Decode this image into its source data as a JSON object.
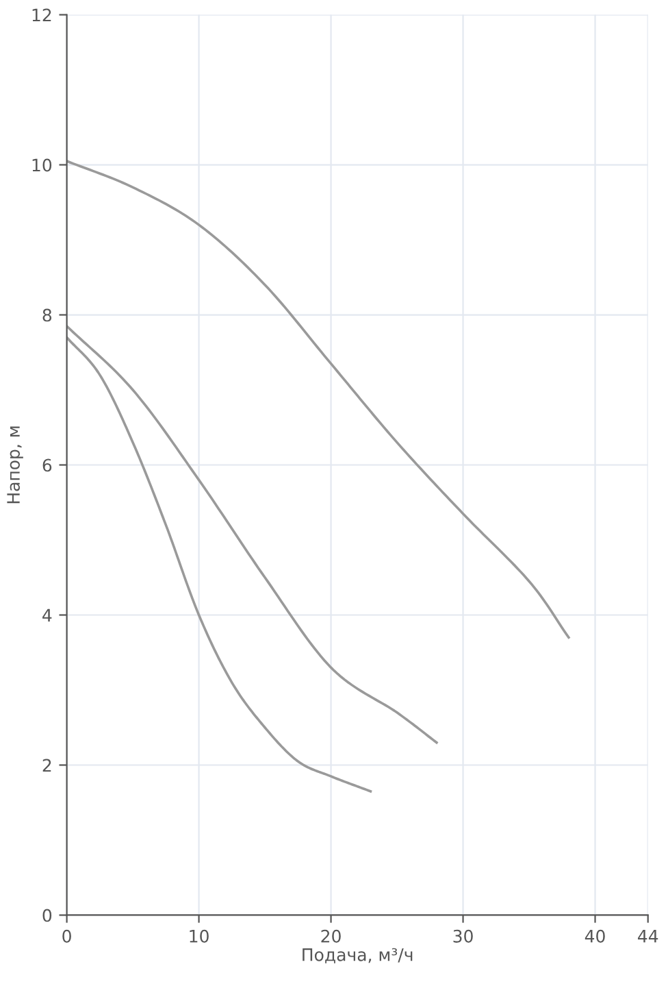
{
  "chart_data": {
    "type": "line",
    "xlabel": "Подача, м³/ч",
    "ylabel": "Напор, м",
    "series": [
      {
        "color": "#9a9a9a",
        "x": [
          0,
          5,
          10,
          15,
          20,
          25,
          30,
          35,
          38
        ],
        "values": [
          10.05,
          9.7,
          9.2,
          8.4,
          7.35,
          6.3,
          5.35,
          4.45,
          3.7
        ]
      },
      {
        "color": "#9a9a9a",
        "x": [
          0,
          5,
          10,
          15,
          20,
          25,
          28
        ],
        "values": [
          7.85,
          7.0,
          5.8,
          4.5,
          3.3,
          2.7,
          2.3
        ]
      },
      {
        "color": "#9a9a9a",
        "x": [
          0,
          2.5,
          5,
          7.5,
          10,
          12.5,
          15,
          17.5,
          20,
          23
        ],
        "values": [
          7.7,
          7.2,
          6.3,
          5.2,
          4.0,
          3.1,
          2.5,
          2.05,
          1.85,
          1.65
        ]
      }
    ],
    "xlim": [
      0,
      44
    ],
    "xticks": [
      0,
      10,
      20,
      30,
      40,
      44
    ],
    "ylim": [
      0,
      12
    ],
    "yticks": [
      0,
      2,
      4,
      6,
      8,
      10,
      12
    ],
    "grid": true,
    "marker": "none",
    "line_style": "solid"
  }
}
